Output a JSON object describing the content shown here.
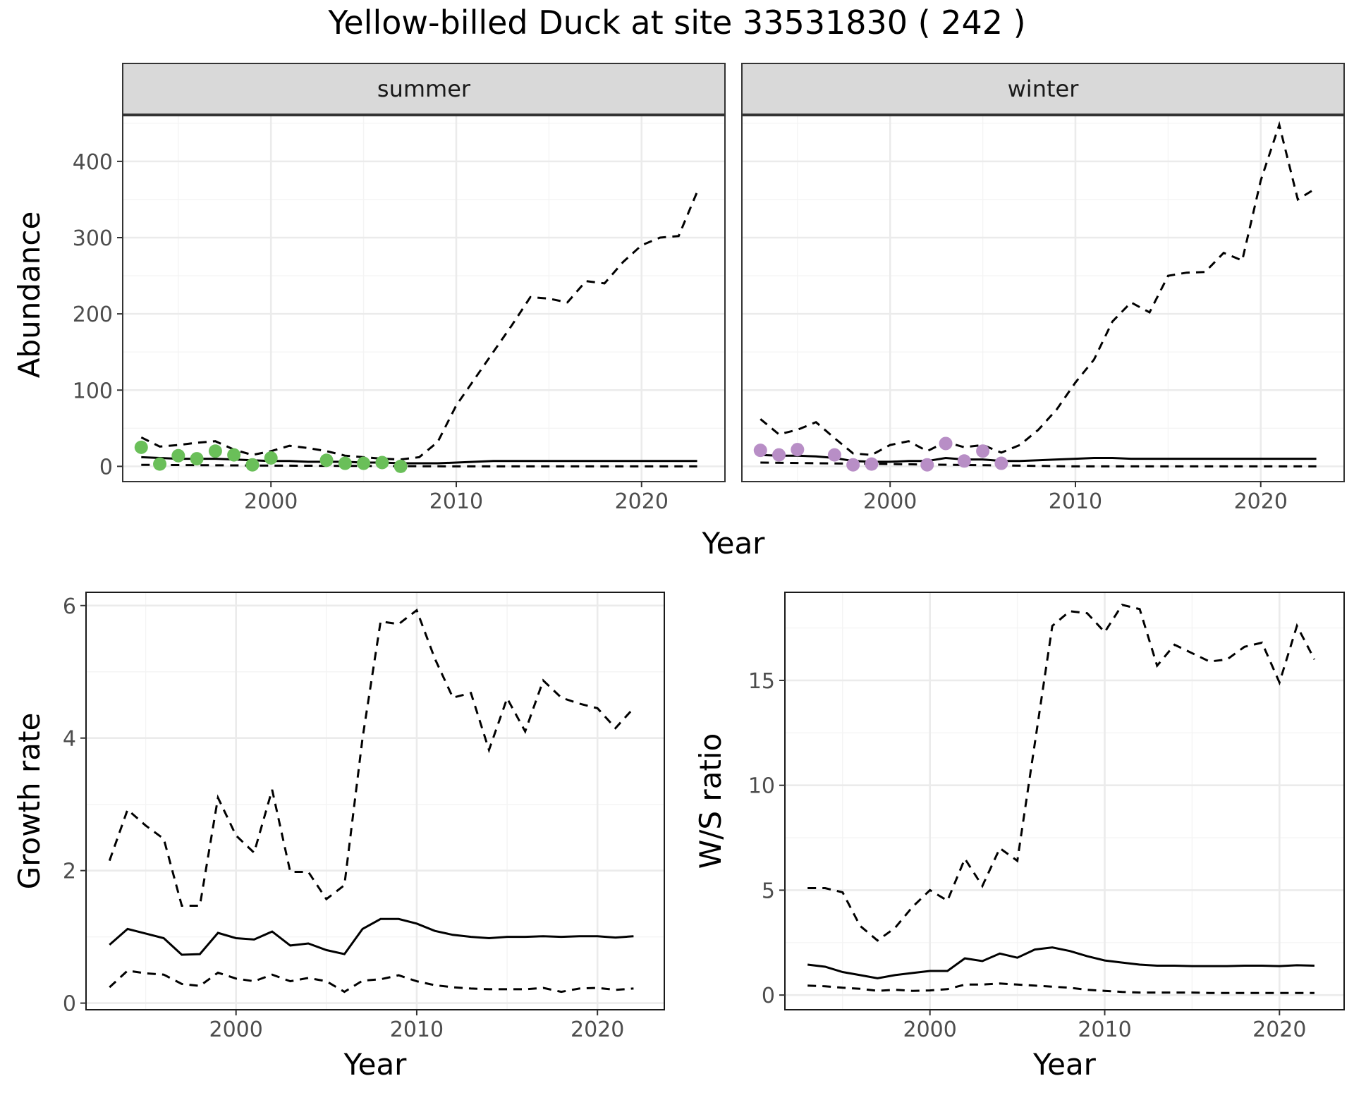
{
  "title": "Yellow-billed Duck at site 33531830 ( 242 )",
  "colors": {
    "summer_points": "#6abf59",
    "winter_points": "#b88ec6",
    "lines": "#000000",
    "strip": "#d9d9d9"
  },
  "chart_data": [
    {
      "type": "line",
      "facet": "summer",
      "xlabel": "Year",
      "ylabel": "Abundance",
      "xlim": [
        1992,
        2024.5
      ],
      "ylim": [
        -20,
        460
      ],
      "xticks": [
        2000,
        2010,
        2020
      ],
      "yticks": [
        0,
        100,
        200,
        300,
        400
      ],
      "grid": true,
      "series": [
        {
          "style": "solid",
          "x": [
            1993,
            1994,
            1995,
            1996,
            1997,
            1998,
            1999,
            2000,
            2001,
            2002,
            2003,
            2004,
            2005,
            2006,
            2007,
            2008,
            2009,
            2010,
            2011,
            2012,
            2013,
            2014,
            2015,
            2016,
            2017,
            2018,
            2019,
            2020,
            2021,
            2022,
            2023
          ],
          "values": [
            12,
            11,
            10,
            10,
            10,
            9,
            8,
            7,
            7,
            6,
            6,
            6,
            5,
            5,
            4,
            4,
            4,
            5,
            6,
            7,
            7,
            7,
            7,
            7,
            7,
            7,
            7,
            7,
            7,
            7,
            7
          ]
        },
        {
          "style": "dashed",
          "x": [
            1993,
            1994,
            1995,
            1996,
            1997,
            1998,
            1999,
            2000,
            2001,
            2002,
            2003,
            2004,
            2005,
            2006,
            2007,
            2008,
            2009,
            2010,
            2011,
            2012,
            2013,
            2014,
            2015,
            2016,
            2017,
            2018,
            2019,
            2020,
            2021,
            2022,
            2023
          ],
          "values": [
            38,
            26,
            28,
            31,
            33,
            22,
            15,
            20,
            27,
            24,
            20,
            14,
            12,
            10,
            9,
            12,
            32,
            80,
            115,
            150,
            185,
            222,
            220,
            215,
            243,
            240,
            268,
            290,
            300,
            302,
            360
          ]
        },
        {
          "style": "dashed",
          "x": [
            1993,
            2000,
            2010,
            2023
          ],
          "values": [
            2,
            1,
            0,
            0
          ]
        },
        {
          "style": "points",
          "color": "#6abf59",
          "x": [
            1993,
            1994,
            1995,
            1996,
            1997,
            1998,
            1999,
            2000,
            2003,
            2004,
            2005,
            2006,
            2007
          ],
          "values": [
            25,
            3,
            14,
            10,
            20,
            15,
            2,
            11,
            8,
            4,
            4,
            5,
            0
          ]
        }
      ]
    },
    {
      "type": "line",
      "facet": "winter",
      "xlabel": "Year",
      "ylabel": "Abundance",
      "xlim": [
        1992,
        2024.5
      ],
      "ylim": [
        -20,
        460
      ],
      "xticks": [
        2000,
        2010,
        2020
      ],
      "yticks": [
        0,
        100,
        200,
        300,
        400
      ],
      "grid": true,
      "series": [
        {
          "style": "solid",
          "x": [
            1993,
            1994,
            1995,
            1996,
            1997,
            1998,
            1999,
            2000,
            2001,
            2002,
            2003,
            2004,
            2005,
            2006,
            2007,
            2008,
            2009,
            2010,
            2011,
            2012,
            2013,
            2014,
            2015,
            2016,
            2017,
            2018,
            2019,
            2020,
            2021,
            2022,
            2023
          ],
          "values": [
            15,
            14,
            14,
            13,
            11,
            7,
            6,
            6,
            7,
            7,
            11,
            9,
            9,
            7,
            7,
            8,
            9,
            10,
            11,
            11,
            10,
            10,
            10,
            10,
            10,
            10,
            10,
            10,
            10,
            10,
            10
          ]
        },
        {
          "style": "dashed",
          "x": [
            1993,
            1994,
            1995,
            1996,
            1997,
            1998,
            1999,
            2000,
            2001,
            2002,
            2003,
            2004,
            2005,
            2006,
            2007,
            2008,
            2009,
            2010,
            2011,
            2012,
            2013,
            2014,
            2015,
            2016,
            2017,
            2018,
            2019,
            2020,
            2021,
            2022,
            2023
          ],
          "values": [
            62,
            42,
            48,
            58,
            37,
            17,
            15,
            28,
            33,
            20,
            32,
            25,
            28,
            18,
            28,
            48,
            75,
            110,
            140,
            190,
            215,
            202,
            250,
            254,
            255,
            280,
            270,
            375,
            448,
            350,
            365
          ]
        },
        {
          "style": "dashed",
          "x": [
            1993,
            2000,
            2010,
            2023
          ],
          "values": [
            5,
            3,
            0,
            0
          ]
        },
        {
          "style": "points",
          "color": "#b88ec6",
          "x": [
            1993,
            1994,
            1995,
            1997,
            1998,
            1999,
            2002,
            2003,
            2004,
            2005,
            2006
          ],
          "values": [
            21,
            15,
            22,
            15,
            2,
            3,
            2,
            30,
            7,
            20,
            4
          ]
        }
      ]
    },
    {
      "type": "line",
      "xlabel": "Year",
      "ylabel": "Growth rate",
      "xlim": [
        1991.7,
        2023.7
      ],
      "ylim": [
        -0.1,
        6.2
      ],
      "xticks": [
        2000,
        2010,
        2020
      ],
      "yticks": [
        0,
        2,
        4,
        6
      ],
      "grid": true,
      "series": [
        {
          "style": "solid",
          "x": [
            1993,
            1994,
            1995,
            1996,
            1997,
            1998,
            1999,
            2000,
            2001,
            2002,
            2003,
            2004,
            2005,
            2006,
            2007,
            2008,
            2009,
            2010,
            2011,
            2012,
            2013,
            2014,
            2015,
            2016,
            2017,
            2018,
            2019,
            2020,
            2021,
            2022
          ],
          "values": [
            0.88,
            1.12,
            1.05,
            0.98,
            0.73,
            0.74,
            1.06,
            0.98,
            0.96,
            1.08,
            0.87,
            0.9,
            0.8,
            0.74,
            1.12,
            1.27,
            1.27,
            1.2,
            1.09,
            1.03,
            1.0,
            0.98,
            1.0,
            1.0,
            1.01,
            1.0,
            1.01,
            1.01,
            0.99,
            1.01
          ]
        },
        {
          "style": "dashed",
          "x": [
            1993,
            1994,
            1995,
            1996,
            1997,
            1998,
            1999,
            2000,
            2001,
            2002,
            2003,
            2004,
            2005,
            2006,
            2007,
            2008,
            2009,
            2010,
            2011,
            2012,
            2013,
            2014,
            2015,
            2016,
            2017,
            2018,
            2019,
            2020,
            2021,
            2022
          ],
          "values": [
            2.15,
            2.92,
            2.68,
            2.48,
            1.47,
            1.47,
            3.1,
            2.53,
            2.27,
            3.22,
            1.98,
            1.98,
            1.57,
            1.78,
            4.0,
            5.76,
            5.72,
            5.93,
            5.2,
            4.61,
            4.68,
            3.82,
            4.6,
            4.1,
            4.87,
            4.61,
            4.52,
            4.45,
            4.15,
            4.45
          ]
        },
        {
          "style": "dashed",
          "x": [
            1993,
            1994,
            1995,
            1996,
            1997,
            1998,
            1999,
            2000,
            2001,
            2002,
            2003,
            2004,
            2005,
            2006,
            2007,
            2008,
            2009,
            2010,
            2011,
            2012,
            2013,
            2014,
            2015,
            2016,
            2017,
            2018,
            2019,
            2020,
            2021,
            2022
          ],
          "values": [
            0.24,
            0.49,
            0.45,
            0.43,
            0.29,
            0.26,
            0.46,
            0.37,
            0.33,
            0.43,
            0.33,
            0.38,
            0.33,
            0.17,
            0.34,
            0.36,
            0.42,
            0.33,
            0.27,
            0.24,
            0.22,
            0.21,
            0.21,
            0.21,
            0.23,
            0.17,
            0.22,
            0.23,
            0.2,
            0.22
          ]
        }
      ]
    },
    {
      "type": "line",
      "xlabel": "Year",
      "ylabel": "W/S ratio",
      "xlim": [
        1991.7,
        2023.7
      ],
      "ylim": [
        -0.7,
        19.2
      ],
      "xticks": [
        2000,
        2010,
        2020
      ],
      "yticks": [
        0,
        5,
        10,
        15
      ],
      "grid": true,
      "series": [
        {
          "style": "solid",
          "x": [
            1993,
            1994,
            1995,
            1996,
            1997,
            1998,
            1999,
            2000,
            2001,
            2002,
            2003,
            2004,
            2005,
            2006,
            2007,
            2008,
            2009,
            2010,
            2011,
            2012,
            2013,
            2014,
            2015,
            2016,
            2017,
            2018,
            2019,
            2020,
            2021,
            2022
          ],
          "values": [
            1.45,
            1.35,
            1.1,
            0.95,
            0.8,
            0.95,
            1.05,
            1.15,
            1.15,
            1.75,
            1.62,
            1.98,
            1.78,
            2.17,
            2.27,
            2.1,
            1.85,
            1.65,
            1.55,
            1.45,
            1.4,
            1.4,
            1.38,
            1.38,
            1.38,
            1.4,
            1.4,
            1.38,
            1.42,
            1.4
          ]
        },
        {
          "style": "dashed",
          "x": [
            1993,
            1994,
            1995,
            1996,
            1997,
            1998,
            1999,
            2000,
            2001,
            2002,
            2003,
            2004,
            2005,
            2006,
            2007,
            2008,
            2009,
            2010,
            2011,
            2012,
            2013,
            2014,
            2015,
            2016,
            2017,
            2018,
            2019,
            2020,
            2021,
            2022
          ],
          "values": [
            5.1,
            5.1,
            4.9,
            3.3,
            2.6,
            3.2,
            4.2,
            5.0,
            4.5,
            6.5,
            5.2,
            7.0,
            6.4,
            12.0,
            17.6,
            18.3,
            18.2,
            17.3,
            18.6,
            18.4,
            15.7,
            16.7,
            16.3,
            15.9,
            16.0,
            16.6,
            16.8,
            14.9,
            17.6,
            16.0
          ]
        },
        {
          "style": "dashed",
          "x": [
            1993,
            1994,
            1995,
            1996,
            1997,
            1998,
            1999,
            2000,
            2001,
            2002,
            2003,
            2004,
            2005,
            2006,
            2007,
            2008,
            2009,
            2010,
            2011,
            2012,
            2013,
            2014,
            2015,
            2016,
            2017,
            2018,
            2019,
            2020,
            2021,
            2022
          ],
          "values": [
            0.45,
            0.42,
            0.35,
            0.3,
            0.2,
            0.25,
            0.2,
            0.22,
            0.28,
            0.5,
            0.5,
            0.55,
            0.5,
            0.45,
            0.4,
            0.35,
            0.25,
            0.2,
            0.15,
            0.12,
            0.12,
            0.12,
            0.12,
            0.1,
            0.1,
            0.1,
            0.1,
            0.1,
            0.1,
            0.1
          ]
        }
      ]
    }
  ],
  "facet_labels": [
    "summer",
    "winter"
  ]
}
